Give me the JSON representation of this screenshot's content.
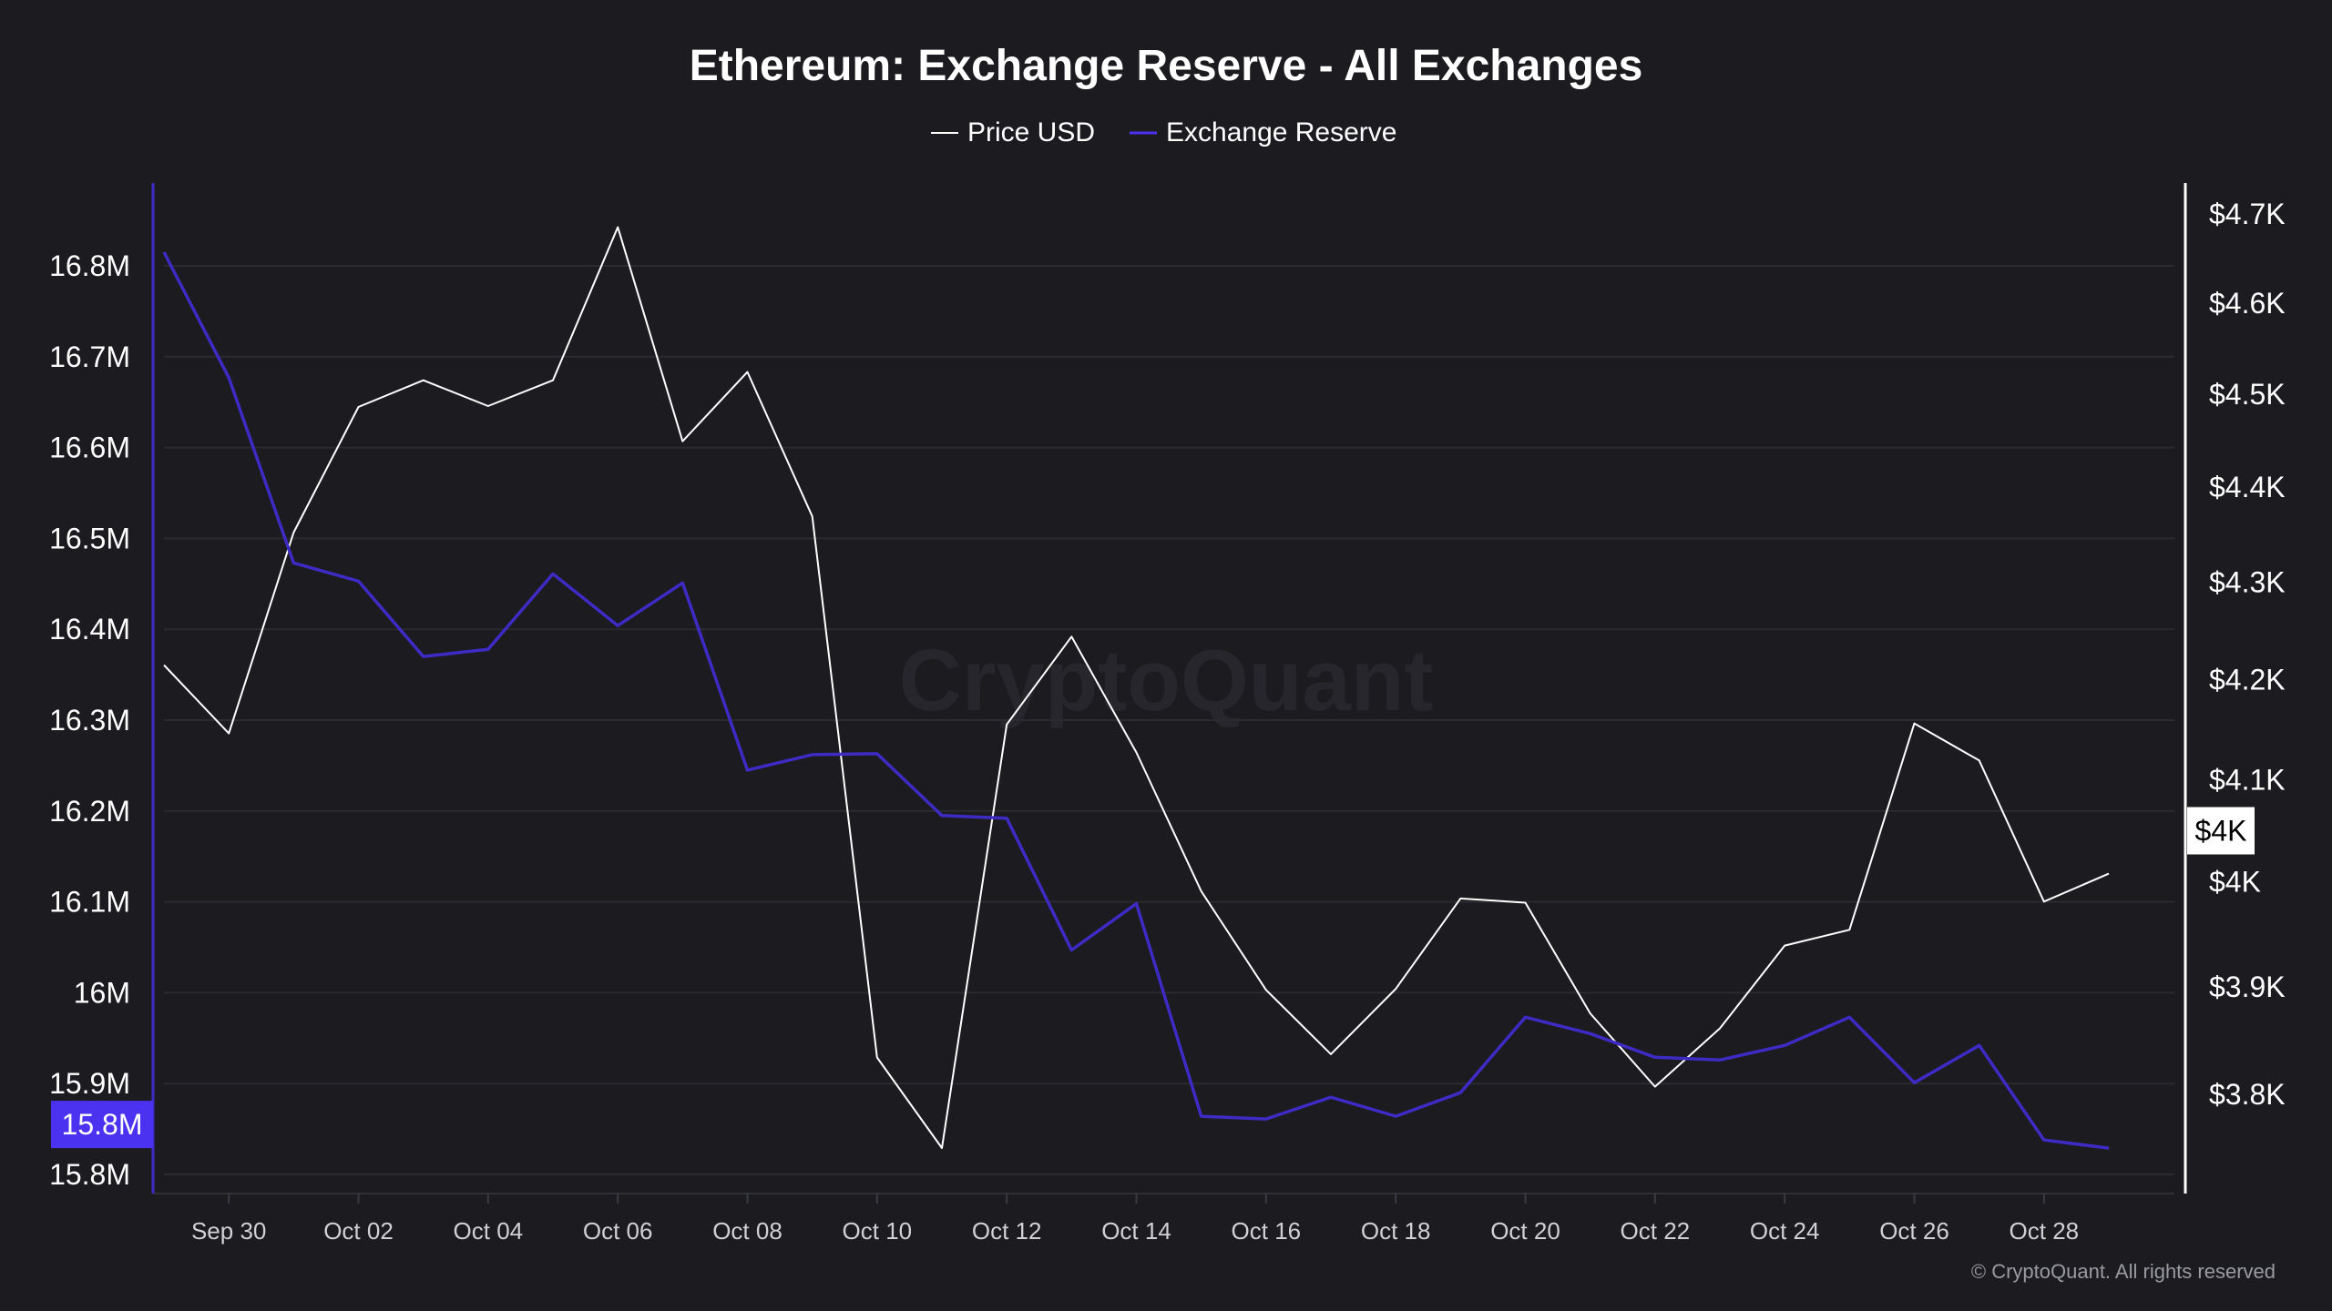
{
  "chart_data": {
    "type": "line",
    "title": "Ethereum: Exchange Reserve - All Exchanges",
    "watermark": "CryptoQuant",
    "copyright": "© CryptoQuant. All rights reserved",
    "legend": {
      "placement": "top-center",
      "entries": [
        "Price USD",
        "Exchange Reserve"
      ]
    },
    "grid": true,
    "x": [
      "Sep 29",
      "Sep 30",
      "Oct 01",
      "Oct 02",
      "Oct 03",
      "Oct 04",
      "Oct 05",
      "Oct 06",
      "Oct 07",
      "Oct 08",
      "Oct 09",
      "Oct 10",
      "Oct 11",
      "Oct 12",
      "Oct 13",
      "Oct 14",
      "Oct 15",
      "Oct 16",
      "Oct 17",
      "Oct 18",
      "Oct 19",
      "Oct 20",
      "Oct 21",
      "Oct 22",
      "Oct 23",
      "Oct 24",
      "Oct 25",
      "Oct 26",
      "Oct 27",
      "Oct 28",
      "Oct 29"
    ],
    "x_tick_labels": [
      "Sep 30",
      "Oct 02",
      "Oct 04",
      "Oct 06",
      "Oct 08",
      "Oct 10",
      "Oct 12",
      "Oct 14",
      "Oct 16",
      "Oct 18",
      "Oct 20",
      "Oct 22",
      "Oct 24",
      "Oct 26",
      "Oct 28"
    ],
    "series": [
      {
        "name": "Price USD",
        "axis": "right",
        "color": "#ffffff",
        "values": [
          4215,
          4146,
          4352,
          4486,
          4515,
          4487,
          4515,
          4685,
          4449,
          4524,
          4369,
          3834,
          3751,
          4155,
          4244,
          4127,
          3991,
          3897,
          3837,
          3898,
          3984,
          3980,
          3875,
          3807,
          3861,
          3939,
          3954,
          4156,
          4119,
          3981,
          4008
        ]
      },
      {
        "name": "Exchange Reserve",
        "axis": "left",
        "color": "#3d2bc4",
        "values": [
          16.815,
          16.677,
          16.473,
          16.453,
          16.37,
          16.378,
          16.461,
          16.404,
          16.451,
          16.245,
          16.262,
          16.263,
          16.195,
          16.192,
          16.047,
          16.098,
          15.864,
          15.861,
          15.885,
          15.864,
          15.89,
          15.973,
          15.955,
          15.929,
          15.926,
          15.942,
          15.973,
          15.901,
          15.942,
          15.838,
          15.829
        ]
      }
    ],
    "y_left": {
      "unit": "M",
      "scale": "linear",
      "range": [
        15.8,
        16.8
      ],
      "tick_labels": [
        "16.8M",
        "16.7M",
        "16.6M",
        "16.5M",
        "16.4M",
        "16.3M",
        "16.2M",
        "16.1M",
        "16M",
        "15.9M",
        "15.8M"
      ],
      "ticks": [
        16.8,
        16.7,
        16.6,
        16.5,
        16.4,
        16.3,
        16.2,
        16.1,
        16.0,
        15.9,
        15.8
      ],
      "current_label": "15.8M",
      "current_label_color": "#4b32f0"
    },
    "y_right": {
      "unit": "USD",
      "scale": "log",
      "range": [
        3800,
        4700
      ],
      "tick_labels": [
        "$4.7K",
        "$4.6K",
        "$4.5K",
        "$4.4K",
        "$4.3K",
        "$4.2K",
        "$4.1K",
        "$4K",
        "$3.9K",
        "$3.8K"
      ],
      "ticks": [
        4700,
        4600,
        4500,
        4400,
        4300,
        4200,
        4100,
        4000,
        3900,
        3800
      ],
      "current_label": "$4K"
    }
  }
}
